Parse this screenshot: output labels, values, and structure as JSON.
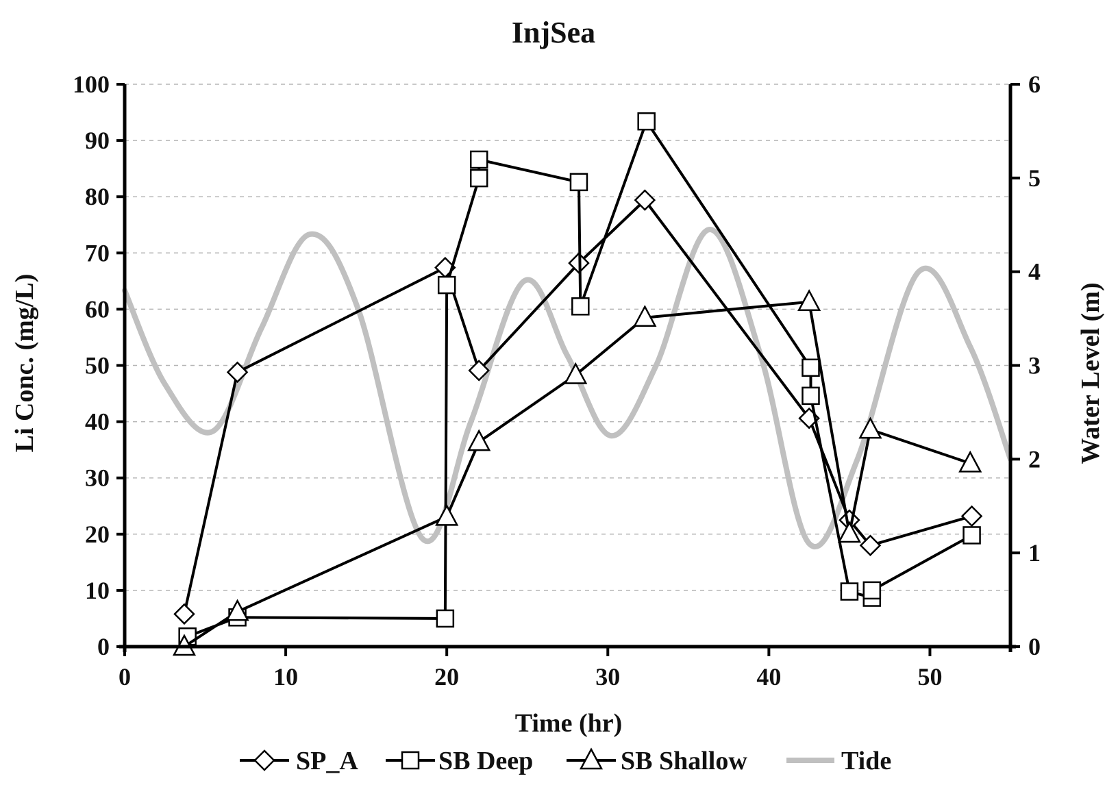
{
  "chart_data": {
    "type": "line",
    "title": "InjSea",
    "xlabel": "Time (hr)",
    "ylabel": "Li Conc. (mg/L)",
    "y2label": "Water Level (m)",
    "xlim": [
      0,
      55
    ],
    "ylim": [
      0,
      100
    ],
    "y2lim": [
      0,
      6
    ],
    "xticks": [
      0,
      10,
      20,
      30,
      40,
      50
    ],
    "yticks": [
      0,
      10,
      20,
      30,
      40,
      50,
      60,
      70,
      80,
      90,
      100
    ],
    "y2ticks": [
      0,
      1,
      2,
      3,
      4,
      5,
      6
    ],
    "grid": true,
    "legend_position": "bottom",
    "series": [
      {
        "name": "SP_A",
        "marker": "diamond",
        "axis": "left",
        "color": "#000000",
        "x": [
          3.7,
          7.0,
          19.9,
          22.0,
          28.2,
          32.3,
          42.5,
          45.0,
          46.3,
          52.6
        ],
        "y": [
          5.8,
          48.8,
          67.4,
          49.1,
          68.2,
          79.4,
          40.6,
          22.5,
          18.0,
          23.2
        ]
      },
      {
        "name": "SB Deep",
        "marker": "square",
        "axis": "left",
        "color": "#000000",
        "x": [
          3.9,
          7.0,
          19.9,
          20.0,
          22.0,
          22.0,
          28.2,
          28.3,
          32.4,
          42.6,
          42.6,
          45.0,
          46.4,
          46.4,
          52.6
        ],
        "y": [
          1.8,
          5.2,
          5.0,
          64.3,
          83.3,
          86.6,
          82.6,
          60.5,
          93.4,
          49.6,
          44.6,
          9.8,
          8.7,
          10.0,
          19.8
        ]
      },
      {
        "name": "SB Shallow",
        "marker": "triangle",
        "axis": "left",
        "color": "#000000",
        "x": [
          3.7,
          7.0,
          20.0,
          22.0,
          28.0,
          32.3,
          42.5,
          45.0,
          46.3,
          52.5
        ],
        "y": [
          0.0,
          6.2,
          23.1,
          36.4,
          48.3,
          58.5,
          61.3,
          20.1,
          38.6,
          32.6
        ]
      },
      {
        "name": "Tide",
        "marker": "none",
        "axis": "right",
        "color": "#c0c0c0",
        "x": [
          0,
          2.5,
          5.5,
          8.5,
          11.5,
          14.5,
          18.5,
          21.5,
          24.8,
          27.5,
          30.2,
          33.0,
          36.3,
          39.5,
          42.5,
          45.5,
          49.3,
          52.5,
          55
        ],
        "y": [
          3.8,
          2.8,
          2.3,
          3.4,
          4.4,
          3.6,
          1.15,
          2.4,
          3.9,
          3.1,
          2.25,
          3.0,
          4.45,
          3.1,
          1.1,
          2.0,
          4.0,
          3.2,
          2.0
        ]
      }
    ]
  }
}
